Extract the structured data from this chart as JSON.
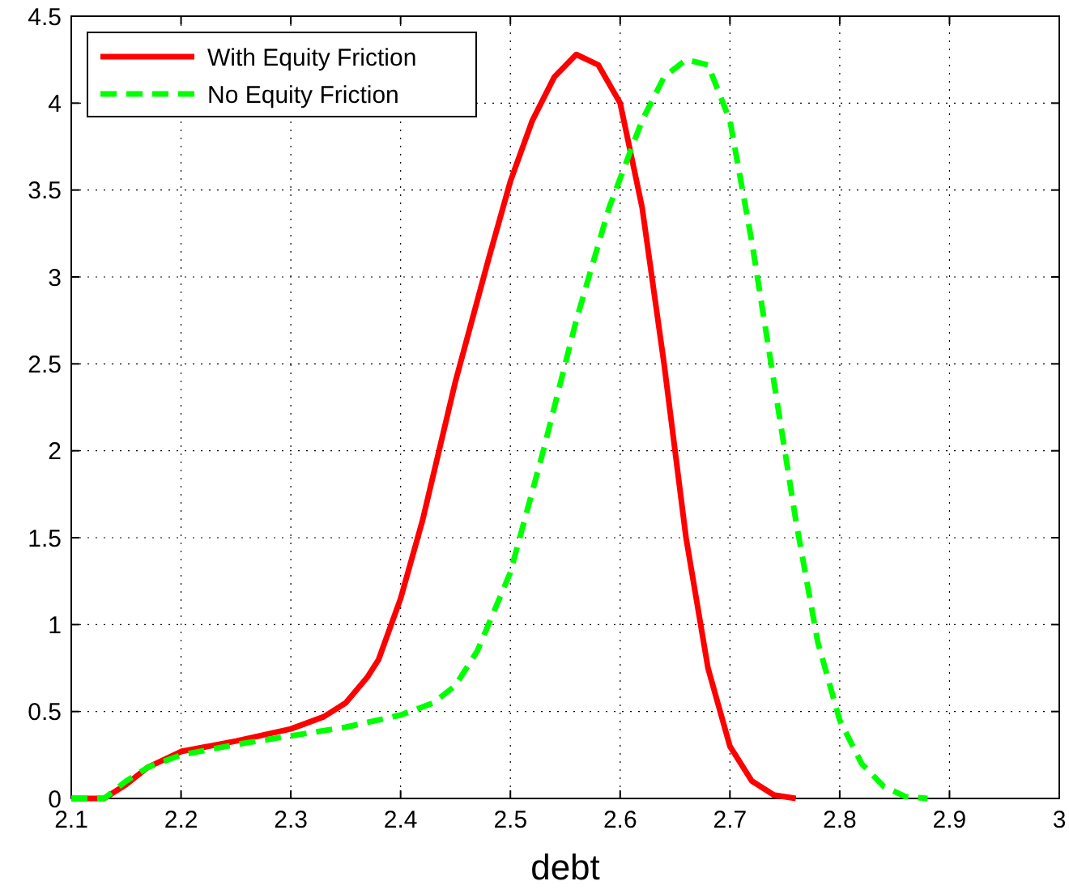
{
  "chart_data": {
    "type": "line",
    "xlabel": "debt",
    "xlim": [
      2.1,
      3
    ],
    "xticks": [
      2.1,
      2.2,
      2.3,
      2.4,
      2.5,
      2.6,
      2.7,
      2.8,
      2.9,
      3
    ],
    "ylim": [
      0,
      4.5
    ],
    "yticks": [
      0,
      0.5,
      1,
      1.5,
      2,
      2.5,
      3,
      3.5,
      4,
      4.5
    ],
    "grid": true,
    "legend": "top left",
    "series": [
      {
        "name": "With Equity Friction",
        "color": "#ff0000",
        "line_style": "solid",
        "x": [
          2.1,
          2.13,
          2.15,
          2.17,
          2.2,
          2.25,
          2.3,
          2.33,
          2.35,
          2.37,
          2.38,
          2.4,
          2.42,
          2.45,
          2.48,
          2.5,
          2.52,
          2.54,
          2.56,
          2.58,
          2.6,
          2.62,
          2.64,
          2.66,
          2.68,
          2.7,
          2.72,
          2.74,
          2.76
        ],
        "values": [
          0,
          0,
          0.08,
          0.18,
          0.27,
          0.33,
          0.4,
          0.47,
          0.55,
          0.7,
          0.8,
          1.15,
          1.6,
          2.4,
          3.1,
          3.55,
          3.9,
          4.15,
          4.28,
          4.22,
          4.0,
          3.4,
          2.5,
          1.5,
          0.75,
          0.3,
          0.1,
          0.02,
          0
        ]
      },
      {
        "name": "No Equity Friction",
        "color": "#00ff00",
        "line_style": "dashed",
        "x": [
          2.1,
          2.13,
          2.15,
          2.17,
          2.2,
          2.25,
          2.3,
          2.35,
          2.4,
          2.43,
          2.45,
          2.47,
          2.5,
          2.53,
          2.56,
          2.59,
          2.62,
          2.64,
          2.66,
          2.68,
          2.7,
          2.72,
          2.74,
          2.76,
          2.78,
          2.8,
          2.82,
          2.84,
          2.86,
          2.88
        ],
        "values": [
          0,
          0,
          0.1,
          0.18,
          0.25,
          0.31,
          0.36,
          0.41,
          0.48,
          0.55,
          0.65,
          0.85,
          1.3,
          2.0,
          2.75,
          3.4,
          3.9,
          4.15,
          4.25,
          4.22,
          3.9,
          3.2,
          2.4,
          1.6,
          0.9,
          0.45,
          0.2,
          0.07,
          0.01,
          0
        ]
      }
    ]
  }
}
